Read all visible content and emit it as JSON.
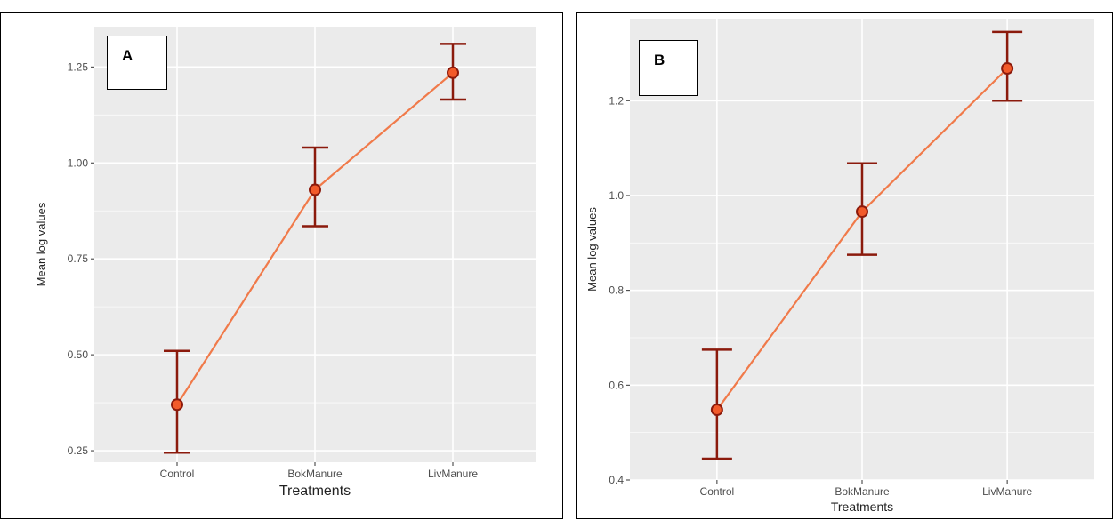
{
  "chart_data": [
    {
      "type": "line",
      "panel_label": "A",
      "categories": [
        "Control",
        "BokManure",
        "LivManure"
      ],
      "series": [
        {
          "values": [
            0.37,
            0.93,
            1.235
          ],
          "error_low": [
            0.245,
            0.835,
            1.165
          ],
          "error_high": [
            0.51,
            1.04,
            1.31
          ]
        }
      ],
      "xlabel": "Treatments",
      "ylabel": "Mean log values",
      "ylim": [
        0.22,
        1.355
      ],
      "yticks": [
        0.25,
        0.5,
        0.75,
        1.0,
        1.25
      ],
      "ytick_labels": [
        "0.25",
        "0.50",
        "0.75",
        "1.00",
        "1.25"
      ],
      "grid": true,
      "colors": {
        "line": "#f07a4a",
        "errorbar": "#8b1a0c",
        "point_fill": "#f25a2a",
        "point_stroke": "#8b1a0c",
        "panel_bg": "#ebebeb",
        "grid": "#ffffff"
      }
    },
    {
      "type": "line",
      "panel_label": "B",
      "categories": [
        "Control",
        "BokManure",
        "LivManure"
      ],
      "series": [
        {
          "values": [
            0.548,
            0.966,
            1.268
          ],
          "error_low": [
            0.445,
            0.875,
            1.2
          ],
          "error_high": [
            0.675,
            1.068,
            1.345
          ]
        }
      ],
      "xlabel": "Treatments",
      "ylabel": "Mean log values",
      "ylim": [
        0.4,
        1.373
      ],
      "yticks": [
        0.4,
        0.6,
        0.8,
        1.0,
        1.2
      ],
      "ytick_labels": [
        "0.4",
        "0.6",
        "0.8",
        "1.0",
        "1.2"
      ],
      "grid": true,
      "colors": {
        "line": "#f07a4a",
        "errorbar": "#8b1a0c",
        "point_fill": "#f25a2a",
        "point_stroke": "#8b1a0c",
        "panel_bg": "#ebebeb",
        "grid": "#ffffff"
      }
    }
  ]
}
